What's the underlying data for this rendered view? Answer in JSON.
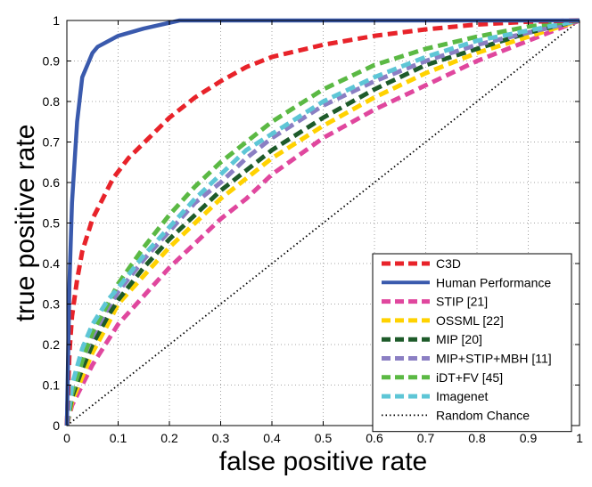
{
  "chart_data": {
    "type": "line",
    "title": "",
    "xlabel": "false positive rate",
    "ylabel": "true positive rate",
    "xlim": [
      0,
      1
    ],
    "ylim": [
      0,
      1
    ],
    "xticks": [
      0,
      0.1,
      0.2,
      0.3,
      0.4,
      0.5,
      0.6,
      0.7,
      0.8,
      0.9,
      1
    ],
    "yticks": [
      0,
      0.1,
      0.2,
      0.3,
      0.4,
      0.5,
      0.6,
      0.7,
      0.8,
      0.9,
      1
    ],
    "xtick_labels": [
      "0",
      "0.1",
      "0.2",
      "0.3",
      "0.4",
      "0.5",
      "0.6",
      "0.7",
      "0.8",
      "0.9",
      "1"
    ],
    "ytick_labels": [
      "0",
      "0.1",
      "0.2",
      "0.3",
      "0.4",
      "0.5",
      "0.6",
      "0.7",
      "0.8",
      "0.9",
      "1"
    ],
    "grid": true,
    "legend_position": "bottom-right",
    "series": [
      {
        "name": "C3D",
        "color": "#e8232a",
        "style": "dashed",
        "points": [
          [
            0,
            0
          ],
          [
            0.005,
            0.18
          ],
          [
            0.01,
            0.27
          ],
          [
            0.02,
            0.36
          ],
          [
            0.03,
            0.43
          ],
          [
            0.05,
            0.51
          ],
          [
            0.07,
            0.56
          ],
          [
            0.09,
            0.61
          ],
          [
            0.12,
            0.66
          ],
          [
            0.16,
            0.71
          ],
          [
            0.2,
            0.76
          ],
          [
            0.25,
            0.81
          ],
          [
            0.3,
            0.85
          ],
          [
            0.35,
            0.885
          ],
          [
            0.4,
            0.91
          ],
          [
            0.5,
            0.94
          ],
          [
            0.6,
            0.962
          ],
          [
            0.7,
            0.978
          ],
          [
            0.8,
            0.99
          ],
          [
            0.9,
            0.997
          ],
          [
            1,
            1
          ]
        ]
      },
      {
        "name": "Human Performance",
        "color": "#3a5aad",
        "style": "solid",
        "points": [
          [
            0,
            0
          ],
          [
            0.005,
            0.35
          ],
          [
            0.01,
            0.55
          ],
          [
            0.02,
            0.75
          ],
          [
            0.03,
            0.86
          ],
          [
            0.05,
            0.92
          ],
          [
            0.06,
            0.935
          ],
          [
            0.1,
            0.962
          ],
          [
            0.15,
            0.98
          ],
          [
            0.22,
            1
          ],
          [
            0.3,
            1
          ],
          [
            0.5,
            1
          ],
          [
            0.75,
            1
          ],
          [
            1,
            1
          ]
        ]
      },
      {
        "name": "STIP [21]",
        "color": "#e0479e",
        "style": "dashed",
        "points": [
          [
            0,
            0
          ],
          [
            0.01,
            0.05
          ],
          [
            0.03,
            0.1
          ],
          [
            0.05,
            0.15
          ],
          [
            0.08,
            0.21
          ],
          [
            0.1,
            0.25
          ],
          [
            0.15,
            0.32
          ],
          [
            0.2,
            0.39
          ],
          [
            0.25,
            0.45
          ],
          [
            0.3,
            0.51
          ],
          [
            0.35,
            0.56
          ],
          [
            0.4,
            0.62
          ],
          [
            0.5,
            0.71
          ],
          [
            0.6,
            0.78
          ],
          [
            0.7,
            0.84
          ],
          [
            0.8,
            0.9
          ],
          [
            0.9,
            0.95
          ],
          [
            1,
            1
          ]
        ]
      },
      {
        "name": "OSSML [22]",
        "color": "#ffd200",
        "style": "dashed",
        "points": [
          [
            0,
            0
          ],
          [
            0.01,
            0.06
          ],
          [
            0.03,
            0.12
          ],
          [
            0.05,
            0.18
          ],
          [
            0.08,
            0.25
          ],
          [
            0.1,
            0.3
          ],
          [
            0.15,
            0.37
          ],
          [
            0.2,
            0.44
          ],
          [
            0.25,
            0.5
          ],
          [
            0.3,
            0.56
          ],
          [
            0.35,
            0.61
          ],
          [
            0.4,
            0.66
          ],
          [
            0.5,
            0.74
          ],
          [
            0.6,
            0.81
          ],
          [
            0.7,
            0.87
          ],
          [
            0.8,
            0.92
          ],
          [
            0.9,
            0.96
          ],
          [
            1,
            1
          ]
        ]
      },
      {
        "name": "MIP [20]",
        "color": "#1e5b2a",
        "style": "dashed",
        "points": [
          [
            0,
            0
          ],
          [
            0.01,
            0.07
          ],
          [
            0.03,
            0.14
          ],
          [
            0.05,
            0.2
          ],
          [
            0.08,
            0.27
          ],
          [
            0.1,
            0.31
          ],
          [
            0.15,
            0.39
          ],
          [
            0.2,
            0.46
          ],
          [
            0.25,
            0.52
          ],
          [
            0.3,
            0.58
          ],
          [
            0.35,
            0.63
          ],
          [
            0.4,
            0.68
          ],
          [
            0.5,
            0.76
          ],
          [
            0.6,
            0.83
          ],
          [
            0.7,
            0.89
          ],
          [
            0.8,
            0.93
          ],
          [
            0.9,
            0.97
          ],
          [
            1,
            1
          ]
        ]
      },
      {
        "name": "MIP+STIP+MBH [11]",
        "color": "#8b7fc3",
        "style": "dashed",
        "points": [
          [
            0,
            0
          ],
          [
            0.01,
            0.08
          ],
          [
            0.03,
            0.16
          ],
          [
            0.05,
            0.22
          ],
          [
            0.08,
            0.29
          ],
          [
            0.1,
            0.33
          ],
          [
            0.15,
            0.41
          ],
          [
            0.2,
            0.48
          ],
          [
            0.25,
            0.55
          ],
          [
            0.3,
            0.6
          ],
          [
            0.35,
            0.66
          ],
          [
            0.4,
            0.71
          ],
          [
            0.5,
            0.79
          ],
          [
            0.6,
            0.85
          ],
          [
            0.7,
            0.9
          ],
          [
            0.8,
            0.94
          ],
          [
            0.9,
            0.97
          ],
          [
            1,
            1
          ]
        ]
      },
      {
        "name": "iDT+FV [45]",
        "color": "#5bb944",
        "style": "dashed",
        "points": [
          [
            0,
            0
          ],
          [
            0.01,
            0.08
          ],
          [
            0.03,
            0.16
          ],
          [
            0.05,
            0.23
          ],
          [
            0.08,
            0.3
          ],
          [
            0.1,
            0.35
          ],
          [
            0.15,
            0.44
          ],
          [
            0.2,
            0.52
          ],
          [
            0.25,
            0.59
          ],
          [
            0.3,
            0.65
          ],
          [
            0.35,
            0.7
          ],
          [
            0.4,
            0.75
          ],
          [
            0.5,
            0.83
          ],
          [
            0.6,
            0.89
          ],
          [
            0.7,
            0.93
          ],
          [
            0.8,
            0.96
          ],
          [
            0.9,
            0.985
          ],
          [
            1,
            1
          ]
        ]
      },
      {
        "name": "Imagenet",
        "color": "#5ec6d6",
        "style": "dashed",
        "points": [
          [
            0,
            0
          ],
          [
            0.01,
            0.1
          ],
          [
            0.03,
            0.19
          ],
          [
            0.05,
            0.25
          ],
          [
            0.08,
            0.31
          ],
          [
            0.1,
            0.34
          ],
          [
            0.15,
            0.42
          ],
          [
            0.2,
            0.49
          ],
          [
            0.25,
            0.56
          ],
          [
            0.3,
            0.62
          ],
          [
            0.35,
            0.68
          ],
          [
            0.4,
            0.72
          ],
          [
            0.5,
            0.8
          ],
          [
            0.6,
            0.86
          ],
          [
            0.7,
            0.91
          ],
          [
            0.8,
            0.95
          ],
          [
            0.9,
            0.975
          ],
          [
            1,
            1
          ]
        ]
      },
      {
        "name": "Random Chance",
        "color": "#000000",
        "style": "dotted",
        "points": [
          [
            0,
            0
          ],
          [
            1,
            1
          ]
        ]
      }
    ]
  }
}
